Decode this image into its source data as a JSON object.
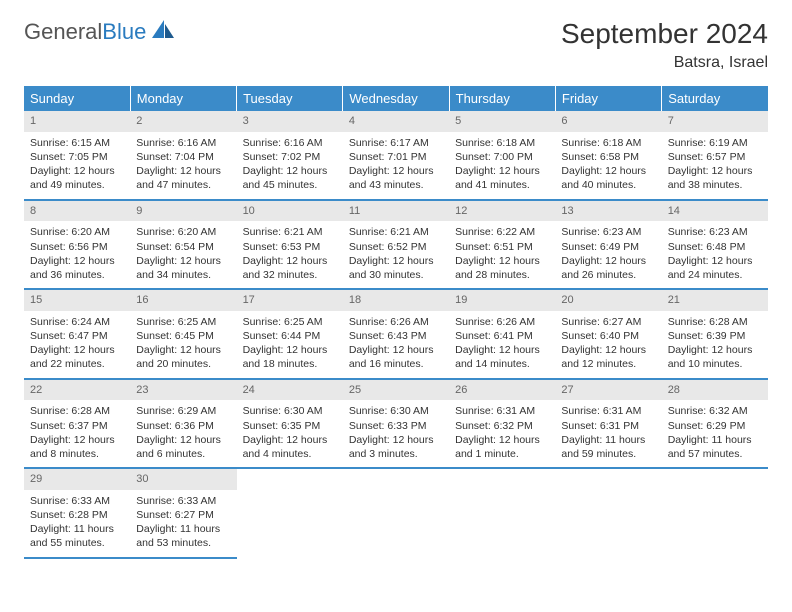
{
  "logo": {
    "text_gray": "General",
    "text_blue": "Blue"
  },
  "title": "September 2024",
  "location": "Batsra, Israel",
  "colors": {
    "header_bg": "#3b8bc9",
    "header_text": "#ffffff",
    "daynum_bg": "#e8e8e8",
    "daynum_text": "#666666",
    "border": "#3b8bc9",
    "body_text": "#333333",
    "page_bg": "#ffffff"
  },
  "weekdays": [
    "Sunday",
    "Monday",
    "Tuesday",
    "Wednesday",
    "Thursday",
    "Friday",
    "Saturday"
  ],
  "days": [
    {
      "n": "1",
      "sunrise": "Sunrise: 6:15 AM",
      "sunset": "Sunset: 7:05 PM",
      "d1": "Daylight: 12 hours",
      "d2": "and 49 minutes."
    },
    {
      "n": "2",
      "sunrise": "Sunrise: 6:16 AM",
      "sunset": "Sunset: 7:04 PM",
      "d1": "Daylight: 12 hours",
      "d2": "and 47 minutes."
    },
    {
      "n": "3",
      "sunrise": "Sunrise: 6:16 AM",
      "sunset": "Sunset: 7:02 PM",
      "d1": "Daylight: 12 hours",
      "d2": "and 45 minutes."
    },
    {
      "n": "4",
      "sunrise": "Sunrise: 6:17 AM",
      "sunset": "Sunset: 7:01 PM",
      "d1": "Daylight: 12 hours",
      "d2": "and 43 minutes."
    },
    {
      "n": "5",
      "sunrise": "Sunrise: 6:18 AM",
      "sunset": "Sunset: 7:00 PM",
      "d1": "Daylight: 12 hours",
      "d2": "and 41 minutes."
    },
    {
      "n": "6",
      "sunrise": "Sunrise: 6:18 AM",
      "sunset": "Sunset: 6:58 PM",
      "d1": "Daylight: 12 hours",
      "d2": "and 40 minutes."
    },
    {
      "n": "7",
      "sunrise": "Sunrise: 6:19 AM",
      "sunset": "Sunset: 6:57 PM",
      "d1": "Daylight: 12 hours",
      "d2": "and 38 minutes."
    },
    {
      "n": "8",
      "sunrise": "Sunrise: 6:20 AM",
      "sunset": "Sunset: 6:56 PM",
      "d1": "Daylight: 12 hours",
      "d2": "and 36 minutes."
    },
    {
      "n": "9",
      "sunrise": "Sunrise: 6:20 AM",
      "sunset": "Sunset: 6:54 PM",
      "d1": "Daylight: 12 hours",
      "d2": "and 34 minutes."
    },
    {
      "n": "10",
      "sunrise": "Sunrise: 6:21 AM",
      "sunset": "Sunset: 6:53 PM",
      "d1": "Daylight: 12 hours",
      "d2": "and 32 minutes."
    },
    {
      "n": "11",
      "sunrise": "Sunrise: 6:21 AM",
      "sunset": "Sunset: 6:52 PM",
      "d1": "Daylight: 12 hours",
      "d2": "and 30 minutes."
    },
    {
      "n": "12",
      "sunrise": "Sunrise: 6:22 AM",
      "sunset": "Sunset: 6:51 PM",
      "d1": "Daylight: 12 hours",
      "d2": "and 28 minutes."
    },
    {
      "n": "13",
      "sunrise": "Sunrise: 6:23 AM",
      "sunset": "Sunset: 6:49 PM",
      "d1": "Daylight: 12 hours",
      "d2": "and 26 minutes."
    },
    {
      "n": "14",
      "sunrise": "Sunrise: 6:23 AM",
      "sunset": "Sunset: 6:48 PM",
      "d1": "Daylight: 12 hours",
      "d2": "and 24 minutes."
    },
    {
      "n": "15",
      "sunrise": "Sunrise: 6:24 AM",
      "sunset": "Sunset: 6:47 PM",
      "d1": "Daylight: 12 hours",
      "d2": "and 22 minutes."
    },
    {
      "n": "16",
      "sunrise": "Sunrise: 6:25 AM",
      "sunset": "Sunset: 6:45 PM",
      "d1": "Daylight: 12 hours",
      "d2": "and 20 minutes."
    },
    {
      "n": "17",
      "sunrise": "Sunrise: 6:25 AM",
      "sunset": "Sunset: 6:44 PM",
      "d1": "Daylight: 12 hours",
      "d2": "and 18 minutes."
    },
    {
      "n": "18",
      "sunrise": "Sunrise: 6:26 AM",
      "sunset": "Sunset: 6:43 PM",
      "d1": "Daylight: 12 hours",
      "d2": "and 16 minutes."
    },
    {
      "n": "19",
      "sunrise": "Sunrise: 6:26 AM",
      "sunset": "Sunset: 6:41 PM",
      "d1": "Daylight: 12 hours",
      "d2": "and 14 minutes."
    },
    {
      "n": "20",
      "sunrise": "Sunrise: 6:27 AM",
      "sunset": "Sunset: 6:40 PM",
      "d1": "Daylight: 12 hours",
      "d2": "and 12 minutes."
    },
    {
      "n": "21",
      "sunrise": "Sunrise: 6:28 AM",
      "sunset": "Sunset: 6:39 PM",
      "d1": "Daylight: 12 hours",
      "d2": "and 10 minutes."
    },
    {
      "n": "22",
      "sunrise": "Sunrise: 6:28 AM",
      "sunset": "Sunset: 6:37 PM",
      "d1": "Daylight: 12 hours",
      "d2": "and 8 minutes."
    },
    {
      "n": "23",
      "sunrise": "Sunrise: 6:29 AM",
      "sunset": "Sunset: 6:36 PM",
      "d1": "Daylight: 12 hours",
      "d2": "and 6 minutes."
    },
    {
      "n": "24",
      "sunrise": "Sunrise: 6:30 AM",
      "sunset": "Sunset: 6:35 PM",
      "d1": "Daylight: 12 hours",
      "d2": "and 4 minutes."
    },
    {
      "n": "25",
      "sunrise": "Sunrise: 6:30 AM",
      "sunset": "Sunset: 6:33 PM",
      "d1": "Daylight: 12 hours",
      "d2": "and 3 minutes."
    },
    {
      "n": "26",
      "sunrise": "Sunrise: 6:31 AM",
      "sunset": "Sunset: 6:32 PM",
      "d1": "Daylight: 12 hours",
      "d2": "and 1 minute."
    },
    {
      "n": "27",
      "sunrise": "Sunrise: 6:31 AM",
      "sunset": "Sunset: 6:31 PM",
      "d1": "Daylight: 11 hours",
      "d2": "and 59 minutes."
    },
    {
      "n": "28",
      "sunrise": "Sunrise: 6:32 AM",
      "sunset": "Sunset: 6:29 PM",
      "d1": "Daylight: 11 hours",
      "d2": "and 57 minutes."
    },
    {
      "n": "29",
      "sunrise": "Sunrise: 6:33 AM",
      "sunset": "Sunset: 6:28 PM",
      "d1": "Daylight: 11 hours",
      "d2": "and 55 minutes."
    },
    {
      "n": "30",
      "sunrise": "Sunrise: 6:33 AM",
      "sunset": "Sunset: 6:27 PM",
      "d1": "Daylight: 11 hours",
      "d2": "and 53 minutes."
    }
  ]
}
